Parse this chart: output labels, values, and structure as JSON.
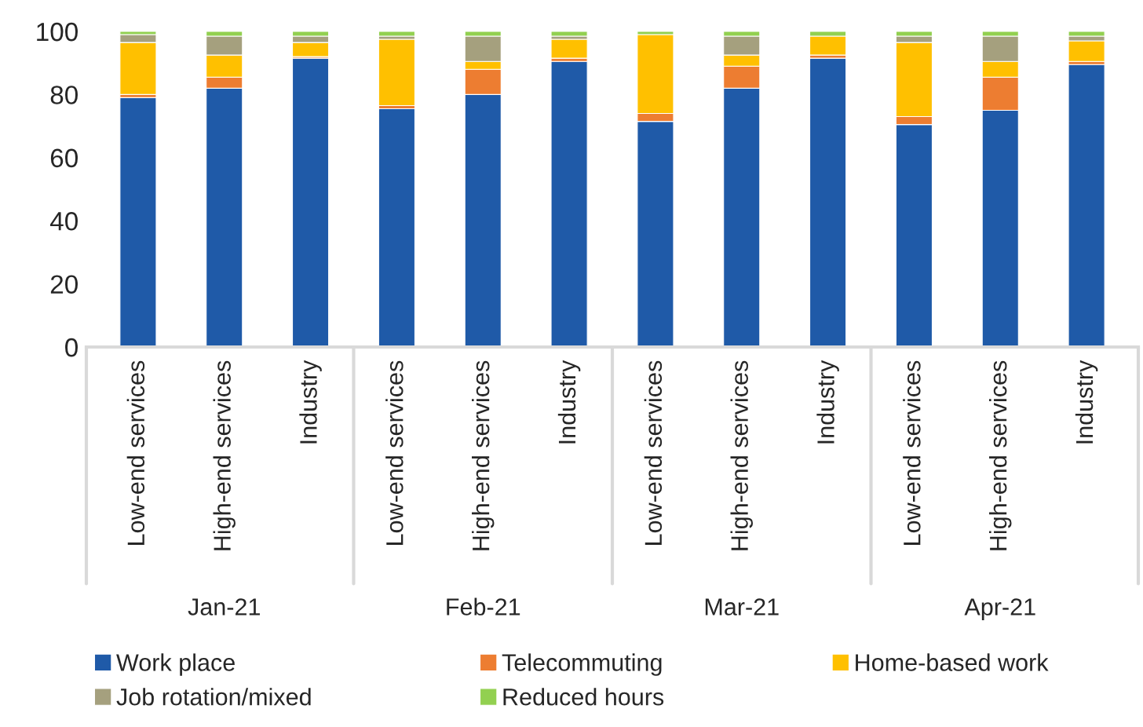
{
  "chart_data": {
    "type": "bar",
    "stacked": true,
    "categories": [
      "Low-end services",
      "High-end services",
      "Industry",
      "Low-end services",
      "High-end services",
      "Industry",
      "Low-end services",
      "High-end services",
      "Industry",
      "Low-end services",
      "High-end services",
      "Industry"
    ],
    "annotations": [
      "Jan-21",
      "Feb-21",
      "Mar-21",
      "Apr-21"
    ],
    "series": [
      {
        "name": "Work place",
        "color": "#1f5aa8",
        "values": [
          79,
          82,
          91.5,
          75.5,
          80,
          90.5,
          71.5,
          82,
          91.5,
          70.5,
          75,
          89.5
        ]
      },
      {
        "name": "Telecommuting",
        "color": "#ed7d31",
        "values": [
          1,
          3.5,
          0.5,
          1,
          8,
          1,
          2.5,
          7,
          1,
          2.5,
          10.5,
          1
        ]
      },
      {
        "name": "Home-based work",
        "color": "#ffc000",
        "values": [
          16.5,
          7,
          4.5,
          21,
          2.5,
          6,
          25,
          3.5,
          6,
          23.5,
          5,
          6.5
        ]
      },
      {
        "name": "Job rotation/mixed",
        "color": "#a5a07e",
        "values": [
          2.5,
          6,
          2,
          1,
          8,
          1,
          null,
          6,
          null,
          2,
          8,
          1.5
        ]
      },
      {
        "name": "Reduced hours",
        "color": "#92d050",
        "values": [
          1,
          1.5,
          1.5,
          1.5,
          1.5,
          1.5,
          1,
          1.5,
          1.5,
          1.5,
          1.5,
          1.5
        ]
      }
    ],
    "ylim": [
      0,
      100
    ],
    "yticks": [
      0,
      20,
      40,
      60,
      80,
      100
    ],
    "grid": false,
    "legend": "bottom"
  }
}
